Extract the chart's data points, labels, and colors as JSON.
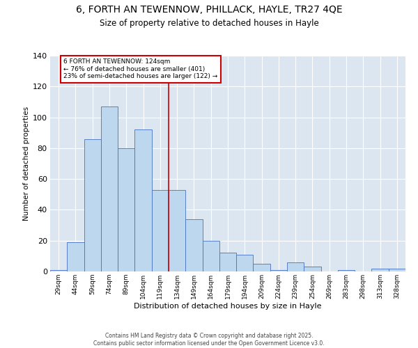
{
  "title_line1": "6, FORTH AN TEWENNOW, PHILLACK, HAYLE, TR27 4QE",
  "title_line2": "Size of property relative to detached houses in Hayle",
  "xlabel": "Distribution of detached houses by size in Hayle",
  "ylabel": "Number of detached properties",
  "categories": [
    "29sqm",
    "44sqm",
    "59sqm",
    "74sqm",
    "89sqm",
    "104sqm",
    "119sqm",
    "134sqm",
    "149sqm",
    "164sqm",
    "179sqm",
    "194sqm",
    "209sqm",
    "224sqm",
    "239sqm",
    "254sqm",
    "269sqm",
    "283sqm",
    "298sqm",
    "313sqm",
    "328sqm"
  ],
  "values": [
    1,
    19,
    86,
    107,
    80,
    92,
    53,
    53,
    34,
    20,
    12,
    11,
    5,
    1,
    6,
    3,
    0,
    1,
    0,
    2,
    2
  ],
  "bar_color": "#bdd7ee",
  "bar_edge_color": "#4472c4",
  "background_color": "#dce6f1",
  "ylim": [
    0,
    140
  ],
  "yticks": [
    0,
    20,
    40,
    60,
    80,
    100,
    120,
    140
  ],
  "annotation_line1": "6 FORTH AN TEWENNOW: 124sqm",
  "annotation_line2": "← 76% of detached houses are smaller (401)",
  "annotation_line3": "23% of semi-detached houses are larger (122) →",
  "vline_color": "#cc0000",
  "annotation_box_color": "#ffffff",
  "annotation_box_edge_color": "#cc0000",
  "footer_line1": "Contains HM Land Registry data © Crown copyright and database right 2025.",
  "footer_line2": "Contains public sector information licensed under the Open Government Licence v3.0.",
  "vline_x_index": 6.5
}
